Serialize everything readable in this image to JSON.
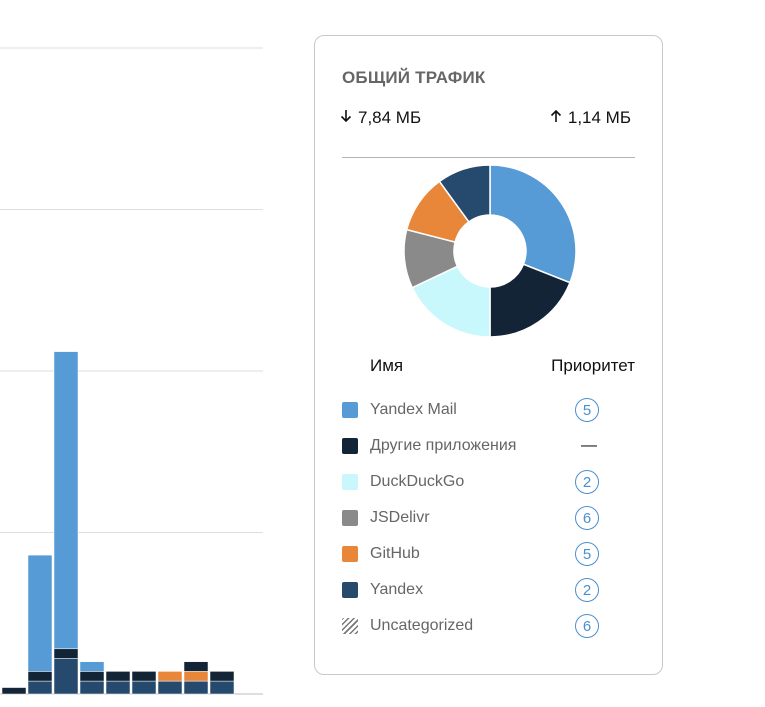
{
  "chart_data": [
    {
      "type": "bar",
      "stacked": true,
      "grid": true,
      "series_colors": [
        "#264a6e",
        "#122436",
        "#e8863a",
        "#569ad6"
      ],
      "bars": [
        {
          "segments": [
            {
              "color": "#264a6e",
              "value": 1
            }
          ]
        },
        {
          "segments": [
            {
              "color": "#122436",
              "value": 2
            }
          ]
        },
        {
          "segments": [
            {
              "color": "#264a6e",
              "value": 4
            },
            {
              "color": "#122436",
              "value": 3
            },
            {
              "color": "#569ad6",
              "value": 36
            }
          ]
        },
        {
          "segments": [
            {
              "color": "#264a6e",
              "value": 11
            },
            {
              "color": "#122436",
              "value": 3
            },
            {
              "color": "#569ad6",
              "value": 92
            }
          ]
        },
        {
          "segments": [
            {
              "color": "#264a6e",
              "value": 4
            },
            {
              "color": "#122436",
              "value": 3
            },
            {
              "color": "#569ad6",
              "value": 3
            }
          ]
        },
        {
          "segments": [
            {
              "color": "#264a6e",
              "value": 4
            },
            {
              "color": "#122436",
              "value": 3
            }
          ]
        },
        {
          "segments": [
            {
              "color": "#264a6e",
              "value": 4
            },
            {
              "color": "#122436",
              "value": 3
            }
          ]
        },
        {
          "segments": [
            {
              "color": "#264a6e",
              "value": 4
            },
            {
              "color": "#e8863a",
              "value": 3
            }
          ]
        },
        {
          "segments": [
            {
              "color": "#264a6e",
              "value": 4
            },
            {
              "color": "#e8863a",
              "value": 3
            },
            {
              "color": "#122436",
              "value": 3
            }
          ]
        },
        {
          "segments": [
            {
              "color": "#264a6e",
              "value": 4
            },
            {
              "color": "#122436",
              "value": 3
            }
          ]
        }
      ],
      "gridline_values": [
        0,
        50,
        100,
        150,
        200
      ],
      "ylim": [
        0,
        200
      ]
    },
    {
      "type": "pie",
      "donut": true,
      "slices": [
        {
          "name": "Yandex Mail",
          "value": 31,
          "color": "#569ad6"
        },
        {
          "name": "Другие приложения",
          "value": 19,
          "color": "#122436"
        },
        {
          "name": "DuckDuckGo",
          "value": 18,
          "color": "#c8f8fc"
        },
        {
          "name": "JSDelivr",
          "value": 11,
          "color": "#8a8a8a"
        },
        {
          "name": "GitHub",
          "value": 11,
          "color": "#e8863a"
        },
        {
          "name": "Yandex",
          "value": 10,
          "color": "#264a6e"
        }
      ]
    }
  ],
  "traffic": {
    "title": "ОБЩИЙ ТРАФИК",
    "download": "7,84 МБ",
    "upload": "1,14 МБ",
    "download_icon": "arrow-down-icon",
    "upload_icon": "arrow-up-icon"
  },
  "legend": {
    "col_name": "Имя",
    "col_priority": "Приоритет",
    "items": [
      {
        "label": "Yandex Mail",
        "color": "#569ad6",
        "priority": "5"
      },
      {
        "label": "Другие приложения",
        "color": "#122436",
        "priority": "—"
      },
      {
        "label": "DuckDuckGo",
        "color": "#c8f8fc",
        "priority": "2"
      },
      {
        "label": "JSDelivr",
        "color": "#8a8a8a",
        "priority": "6"
      },
      {
        "label": "GitHub",
        "color": "#e8863a",
        "priority": "5"
      },
      {
        "label": "Yandex",
        "color": "#264a6e",
        "priority": "2"
      },
      {
        "label": "Uncategorized",
        "color": "hatched",
        "priority": "6"
      }
    ]
  }
}
